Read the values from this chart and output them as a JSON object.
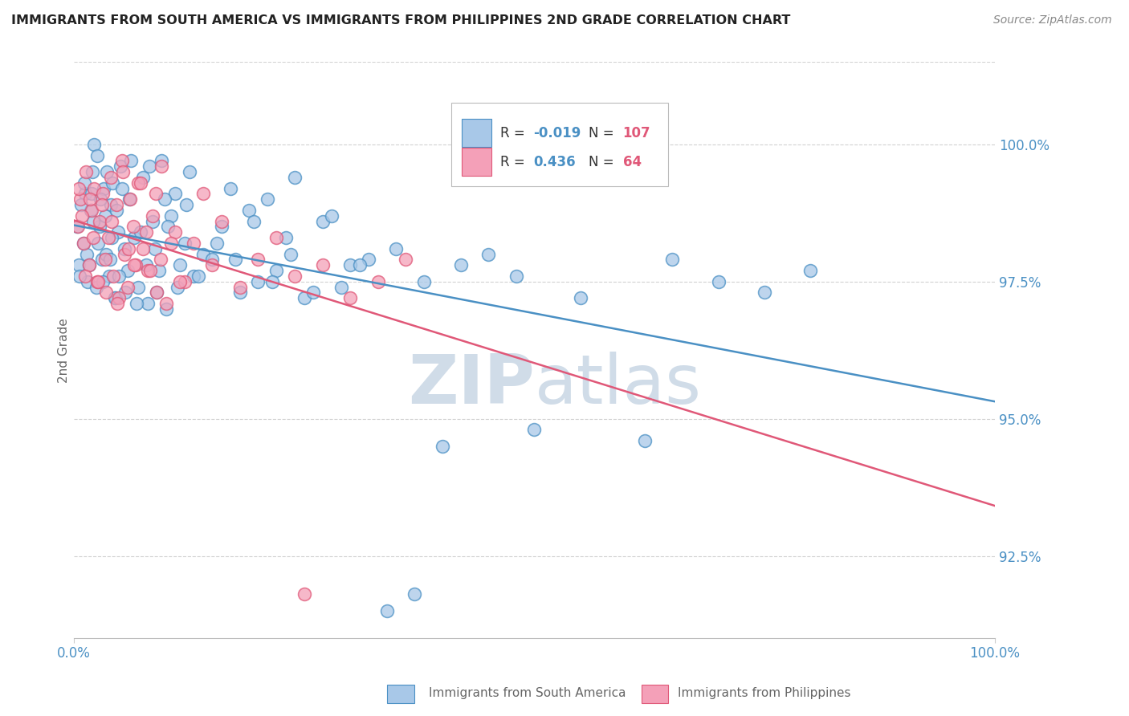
{
  "title": "IMMIGRANTS FROM SOUTH AMERICA VS IMMIGRANTS FROM PHILIPPINES 2ND GRADE CORRELATION CHART",
  "source": "Source: ZipAtlas.com",
  "ylabel": "2nd Grade",
  "xlim": [
    0.0,
    100.0
  ],
  "ylim": [
    91.0,
    101.5
  ],
  "yticks": [
    92.5,
    95.0,
    97.5,
    100.0
  ],
  "ytick_labels": [
    "92.5%",
    "95.0%",
    "97.5%",
    "100.0%"
  ],
  "blue_R": -0.019,
  "blue_N": 107,
  "pink_R": 0.436,
  "pink_N": 64,
  "blue_color": "#a8c8e8",
  "pink_color": "#f4a0b8",
  "blue_line_color": "#4a90c4",
  "pink_line_color": "#e05878",
  "grid_color": "#cccccc",
  "title_color": "#222222",
  "axis_label_color": "#666666",
  "tick_label_color": "#4a90c4",
  "legend_R_color": "#4a90c4",
  "legend_N_color": "#e05878",
  "watermark_color": "#d0dce8",
  "background_color": "#ffffff",
  "blue_scatter_x": [
    0.5,
    1.0,
    1.2,
    1.5,
    1.8,
    2.0,
    2.2,
    2.5,
    2.8,
    3.0,
    3.2,
    3.5,
    3.8,
    4.0,
    4.2,
    4.5,
    4.8,
    5.0,
    5.5,
    5.8,
    6.0,
    6.5,
    7.0,
    7.5,
    8.0,
    8.5,
    9.0,
    9.5,
    10.0,
    10.5,
    11.0,
    11.5,
    12.0,
    12.5,
    13.0,
    14.0,
    15.0,
    16.0,
    17.0,
    18.0,
    19.0,
    20.0,
    21.0,
    22.0,
    23.0,
    24.0,
    25.0,
    27.0,
    29.0,
    30.0,
    32.0,
    35.0,
    38.0,
    40.0,
    42.0,
    45.0,
    48.0,
    50.0,
    55.0,
    62.0,
    65.0,
    70.0,
    75.0,
    80.0,
    0.3,
    0.6,
    0.8,
    1.1,
    1.4,
    1.6,
    1.9,
    2.1,
    2.4,
    2.6,
    2.9,
    3.1,
    3.4,
    3.6,
    3.9,
    4.1,
    4.4,
    4.6,
    4.9,
    5.2,
    5.6,
    6.2,
    6.8,
    7.2,
    7.8,
    8.2,
    8.8,
    9.2,
    9.8,
    10.2,
    11.2,
    12.2,
    13.5,
    15.5,
    17.5,
    19.5,
    21.5,
    23.5,
    26.0,
    28.0,
    31.0,
    34.0,
    37.0
  ],
  "blue_scatter_y": [
    97.8,
    98.2,
    99.1,
    97.5,
    98.8,
    99.5,
    100.0,
    99.8,
    98.5,
    97.9,
    99.2,
    98.0,
    97.6,
    98.9,
    99.3,
    97.2,
    98.4,
    99.6,
    98.1,
    97.7,
    99.0,
    98.3,
    97.4,
    99.4,
    97.1,
    98.6,
    97.3,
    99.7,
    97.0,
    98.7,
    99.1,
    97.8,
    98.2,
    99.5,
    97.6,
    98.0,
    97.9,
    98.5,
    99.2,
    97.3,
    98.8,
    97.5,
    99.0,
    97.7,
    98.3,
    99.4,
    97.2,
    98.6,
    97.4,
    97.8,
    97.9,
    98.1,
    97.5,
    94.5,
    97.8,
    98.0,
    97.6,
    94.8,
    97.2,
    94.6,
    97.9,
    97.5,
    97.3,
    97.7,
    98.5,
    97.6,
    98.9,
    99.3,
    98.0,
    97.8,
    99.1,
    98.6,
    97.4,
    98.2,
    99.0,
    97.5,
    98.7,
    99.5,
    97.9,
    98.3,
    97.2,
    98.8,
    97.6,
    99.2,
    97.3,
    99.7,
    97.1,
    98.4,
    97.8,
    99.6,
    98.1,
    97.7,
    99.0,
    98.5,
    97.4,
    98.9,
    97.6,
    98.2,
    97.9,
    98.6,
    97.5,
    98.0,
    97.3,
    98.7,
    97.8,
    91.5,
    91.8
  ],
  "pink_scatter_x": [
    0.4,
    0.7,
    1.0,
    1.3,
    1.6,
    1.9,
    2.2,
    2.5,
    2.8,
    3.1,
    3.4,
    3.7,
    4.0,
    4.3,
    4.6,
    4.9,
    5.2,
    5.5,
    5.8,
    6.1,
    6.4,
    6.7,
    7.0,
    7.5,
    8.0,
    8.5,
    9.0,
    9.5,
    10.0,
    11.0,
    12.0,
    13.0,
    14.0,
    15.0,
    16.0,
    18.0,
    20.0,
    22.0,
    24.0,
    27.0,
    30.0,
    33.0,
    36.0,
    0.5,
    0.9,
    1.2,
    1.7,
    2.1,
    2.6,
    3.0,
    3.5,
    4.1,
    4.7,
    5.3,
    5.9,
    6.5,
    7.2,
    7.8,
    8.3,
    8.9,
    9.4,
    10.5,
    11.5,
    25.0
  ],
  "pink_scatter_y": [
    98.5,
    99.0,
    98.2,
    99.5,
    97.8,
    98.8,
    99.2,
    97.5,
    98.6,
    99.1,
    97.9,
    98.3,
    99.4,
    97.6,
    98.9,
    97.2,
    99.7,
    98.0,
    97.4,
    99.0,
    98.5,
    97.8,
    99.3,
    98.1,
    97.7,
    98.7,
    97.3,
    99.6,
    97.1,
    98.4,
    97.5,
    98.2,
    99.1,
    97.8,
    98.6,
    97.4,
    97.9,
    98.3,
    97.6,
    97.8,
    97.2,
    97.5,
    97.9,
    99.2,
    98.7,
    97.6,
    99.0,
    98.3,
    97.5,
    98.9,
    97.3,
    98.6,
    97.1,
    99.5,
    98.1,
    97.8,
    99.3,
    98.4,
    97.7,
    99.1,
    97.9,
    98.2,
    97.5,
    91.8
  ]
}
